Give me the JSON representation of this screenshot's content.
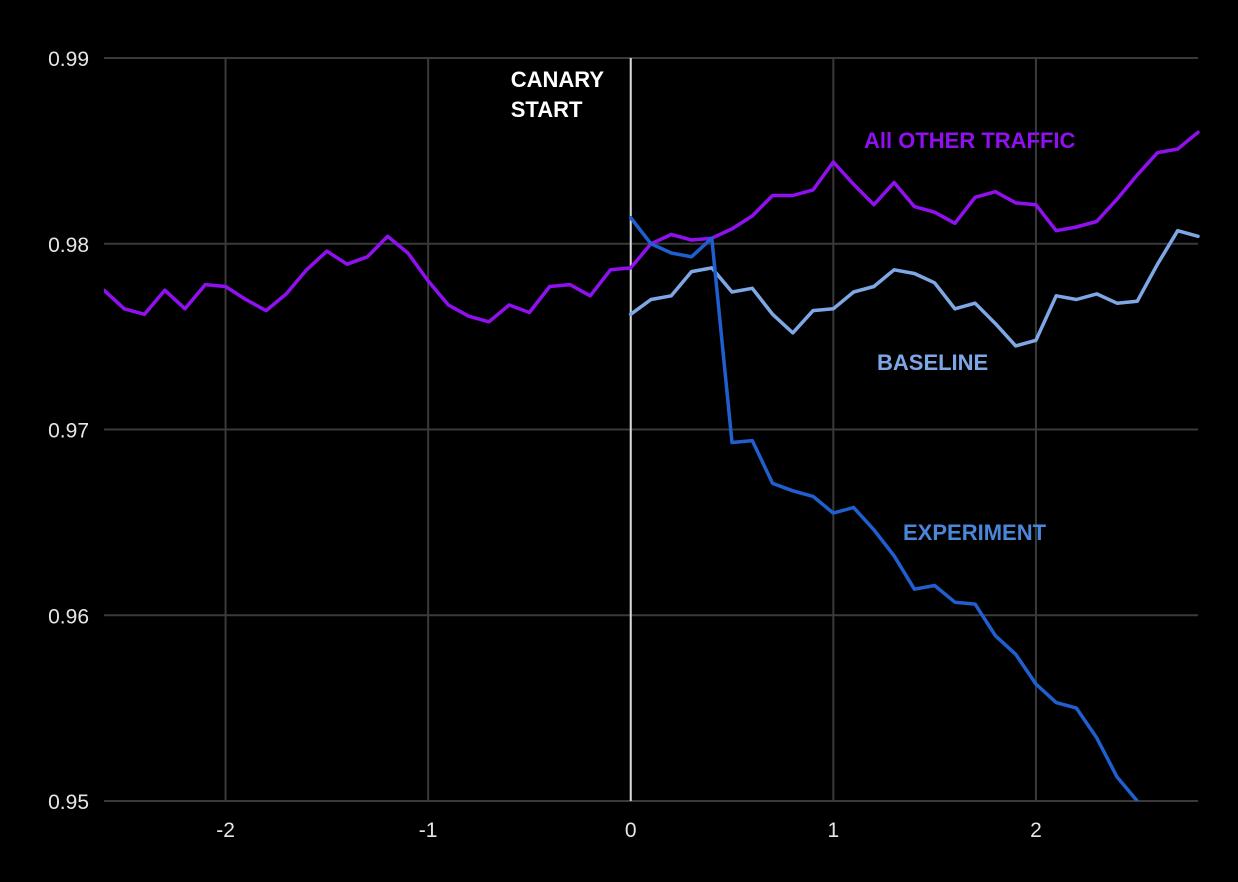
{
  "chart_data": {
    "type": "line",
    "title": "",
    "xlabel": "",
    "ylabel": "",
    "xlim": [
      -2.6,
      2.8
    ],
    "ylim": [
      0.95,
      0.99
    ],
    "grid": true,
    "x_ticks": [
      -2,
      -1,
      0,
      1,
      2
    ],
    "x_tick_labels": [
      "-2",
      "-1",
      "0",
      "1",
      "2"
    ],
    "y_ticks": [
      0.95,
      0.96,
      0.97,
      0.98,
      0.99
    ],
    "y_tick_labels": [
      "0.95",
      "0.96",
      "0.97",
      "0.98",
      "0.99"
    ],
    "background": "#000000",
    "grid_color": "#3a3a3a",
    "annotations": [
      {
        "lines": [
          "CANARY",
          "START"
        ],
        "x": 0,
        "color": "#ffffff"
      }
    ],
    "series": [
      {
        "name": "All OTHER TRAFFIC",
        "color": "#9010f0",
        "points": [
          [
            -2.6,
            0.9775
          ],
          [
            -2.5,
            0.9765
          ],
          [
            -2.4,
            0.9762
          ],
          [
            -2.3,
            0.9775
          ],
          [
            -2.2,
            0.9765
          ],
          [
            -2.1,
            0.9778
          ],
          [
            -2.0,
            0.9777
          ],
          [
            -1.9,
            0.977
          ],
          [
            -1.8,
            0.9764
          ],
          [
            -1.7,
            0.9773
          ],
          [
            -1.6,
            0.9786
          ],
          [
            -1.5,
            0.9796
          ],
          [
            -1.4,
            0.9789
          ],
          [
            -1.3,
            0.9793
          ],
          [
            -1.2,
            0.9804
          ],
          [
            -1.1,
            0.9795
          ],
          [
            -1.0,
            0.978
          ],
          [
            -0.9,
            0.9767
          ],
          [
            -0.8,
            0.9761
          ],
          [
            -0.7,
            0.9758
          ],
          [
            -0.6,
            0.9767
          ],
          [
            -0.5,
            0.9763
          ],
          [
            -0.4,
            0.9777
          ],
          [
            -0.3,
            0.9778
          ],
          [
            -0.2,
            0.9772
          ],
          [
            -0.1,
            0.9786
          ],
          [
            0.0,
            0.9787
          ],
          [
            0.1,
            0.98
          ],
          [
            0.2,
            0.9805
          ],
          [
            0.3,
            0.9802
          ],
          [
            0.4,
            0.9803
          ],
          [
            0.5,
            0.9808
          ],
          [
            0.6,
            0.9815
          ],
          [
            0.7,
            0.9826
          ],
          [
            0.8,
            0.9826
          ],
          [
            0.9,
            0.9829
          ],
          [
            1.0,
            0.9844
          ],
          [
            1.1,
            0.9832
          ],
          [
            1.2,
            0.9821
          ],
          [
            1.3,
            0.9833
          ],
          [
            1.4,
            0.982
          ],
          [
            1.5,
            0.9817
          ],
          [
            1.6,
            0.9811
          ],
          [
            1.7,
            0.9825
          ],
          [
            1.8,
            0.9828
          ],
          [
            1.9,
            0.9822
          ],
          [
            2.0,
            0.9821
          ],
          [
            2.1,
            0.9807
          ],
          [
            2.2,
            0.9809
          ],
          [
            2.3,
            0.9812
          ],
          [
            2.4,
            0.9824
          ],
          [
            2.5,
            0.9837
          ],
          [
            2.6,
            0.9849
          ],
          [
            2.7,
            0.9851
          ],
          [
            2.8,
            0.986
          ]
        ],
        "label_at": [
          0.16,
          0.9833
        ]
      },
      {
        "name": "BASELINE",
        "color": "#7ea7e6",
        "points": [
          [
            0.0,
            0.9762
          ],
          [
            0.1,
            0.977
          ],
          [
            0.2,
            0.9772
          ],
          [
            0.3,
            0.9785
          ],
          [
            0.4,
            0.9787
          ],
          [
            0.5,
            0.9774
          ],
          [
            0.6,
            0.9776
          ],
          [
            0.7,
            0.9762
          ],
          [
            0.8,
            0.9752
          ],
          [
            0.9,
            0.9764
          ],
          [
            1.0,
            0.9765
          ],
          [
            1.1,
            0.9774
          ],
          [
            1.2,
            0.9777
          ],
          [
            1.3,
            0.9786
          ],
          [
            1.4,
            0.9784
          ],
          [
            1.5,
            0.9779
          ],
          [
            1.6,
            0.9765
          ],
          [
            1.7,
            0.9768
          ],
          [
            1.8,
            0.9757
          ],
          [
            1.9,
            0.9745
          ],
          [
            2.0,
            0.9748
          ],
          [
            2.1,
            0.9772
          ],
          [
            2.2,
            0.977
          ],
          [
            2.3,
            0.9773
          ],
          [
            2.4,
            0.9768
          ],
          [
            2.5,
            0.9769
          ],
          [
            2.6,
            0.9789
          ],
          [
            2.7,
            0.9807
          ],
          [
            2.8,
            0.9804
          ]
        ],
        "label_at": [
          0.22,
          0.9738
        ]
      },
      {
        "name": "EXPERIMENT",
        "color": "#1f5fd0",
        "label_color": "#4a86d9",
        "points": [
          [
            0.0,
            0.9814
          ],
          [
            0.1,
            0.98
          ],
          [
            0.2,
            0.9795
          ],
          [
            0.3,
            0.9793
          ],
          [
            0.4,
            0.9803
          ],
          [
            0.5,
            0.9693
          ],
          [
            0.6,
            0.9694
          ],
          [
            0.7,
            0.9671
          ],
          [
            0.8,
            0.9667
          ],
          [
            0.9,
            0.9664
          ],
          [
            1.0,
            0.9655
          ],
          [
            1.1,
            0.9658
          ],
          [
            1.2,
            0.9646
          ],
          [
            1.3,
            0.9632
          ],
          [
            1.4,
            0.9614
          ],
          [
            1.5,
            0.9616
          ],
          [
            1.6,
            0.9607
          ],
          [
            1.7,
            0.9606
          ],
          [
            1.8,
            0.9589
          ],
          [
            1.9,
            0.9579
          ],
          [
            2.0,
            0.9563
          ],
          [
            2.1,
            0.9553
          ],
          [
            2.2,
            0.955
          ],
          [
            2.3,
            0.9534
          ],
          [
            2.4,
            0.9513
          ],
          [
            2.5,
            0.95
          ]
        ],
        "label_at": [
          0.235,
          0.9647
        ]
      }
    ]
  }
}
